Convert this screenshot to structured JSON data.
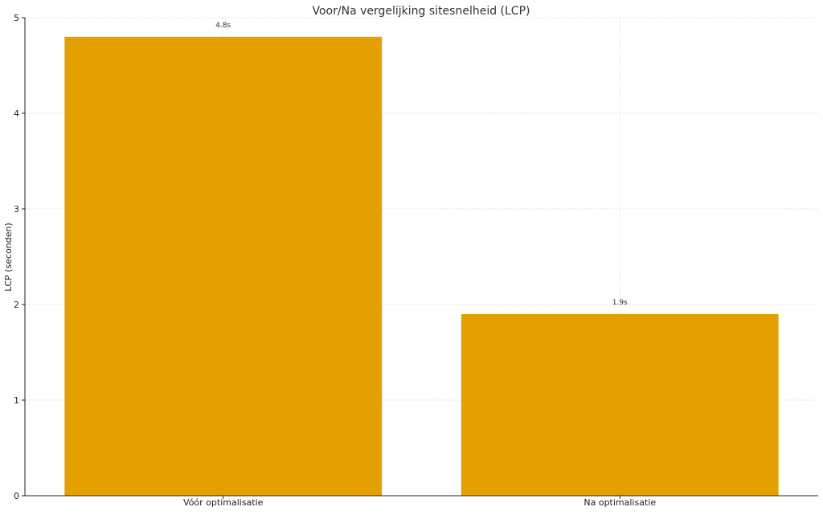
{
  "chart_data": {
    "type": "bar",
    "title": "Voor/Na vergelijking sitesnelheid (LCP)",
    "xlabel": "",
    "ylabel": "LCP (seconden)",
    "categories": [
      "Vóór optimalisatie",
      "Na optimalisatie"
    ],
    "values": [
      4.8,
      1.9
    ],
    "value_labels": [
      "4.8s",
      "1.9s"
    ],
    "ylim": [
      0,
      5
    ],
    "yticks": [
      0,
      1,
      2,
      3,
      4,
      5
    ],
    "grid": true,
    "bar_color": "#E3A000",
    "legend": "none"
  }
}
